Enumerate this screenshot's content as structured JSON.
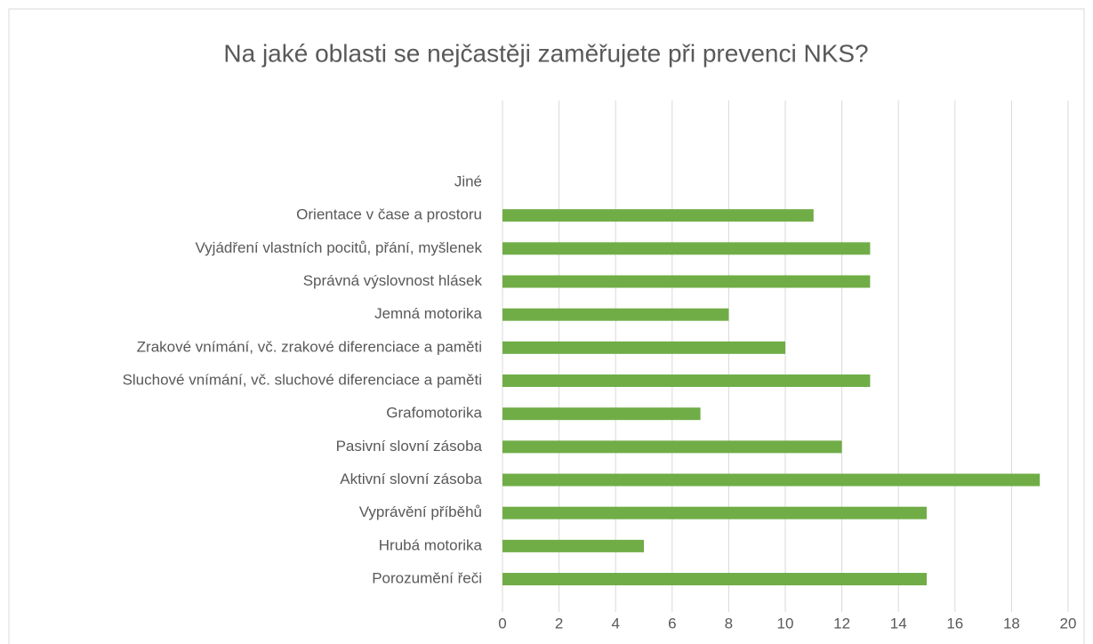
{
  "chart_data": {
    "type": "barh",
    "title": "Na jaké oblasti se nejčastěji zaměřujete při prevenci NKS?",
    "categories": [
      "Jiné",
      "Orientace v čase a prostoru",
      "Vyjádření vlastních pocitů, přání, myšlenek",
      "Správná výslovnost hlásek",
      "Jemná motorika",
      "Zrakové vnímání, vč. zrakové diferenciace a paměti",
      "Sluchové vnímání, vč. sluchové diferenciace a paměti",
      "Grafomotorika",
      "Pasivní slovní zásoba",
      "Aktivní slovní zásoba",
      "Vyprávění příběhů",
      "Hrubá motorika",
      "Porozumění řeči"
    ],
    "values": [
      0,
      11,
      13,
      13,
      8,
      10,
      13,
      7,
      12,
      19,
      15,
      5,
      15
    ],
    "color": "#70ad47",
    "xlim": [
      0,
      20
    ],
    "xticks": [
      0,
      2,
      4,
      6,
      8,
      10,
      12,
      14,
      16,
      18,
      20
    ],
    "grid": true
  }
}
